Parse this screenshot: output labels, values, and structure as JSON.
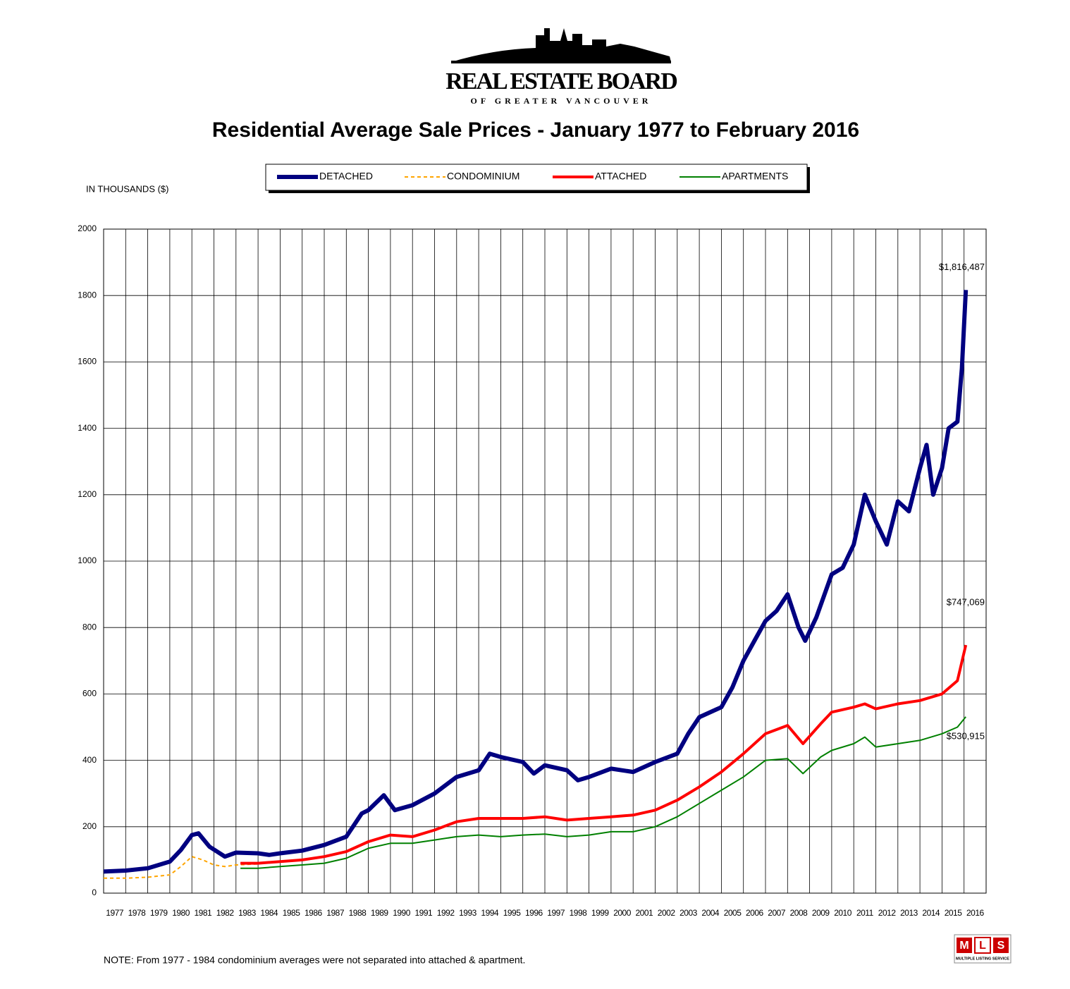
{
  "logo": {
    "name": "REAL ESTATE BOARD",
    "sub": "OF GREATER VANCOUVER",
    "mls": [
      "M",
      "L",
      "S"
    ],
    "mls_sub": "MULTIPLE LISTING SERVICE"
  },
  "chart_data": {
    "type": "line",
    "title": "Residential Average Sale Prices  -  January 1977 to February 2016",
    "y_label": "IN THOUSANDS ($)",
    "xlim": [
      1977,
      2017
    ],
    "xticks": [
      1977,
      1978,
      1979,
      1980,
      1981,
      1982,
      1983,
      1984,
      1985,
      1986,
      1987,
      1988,
      1989,
      1990,
      1991,
      1992,
      1993,
      1994,
      1995,
      1996,
      1997,
      1998,
      1999,
      2000,
      2001,
      2002,
      2003,
      2004,
      2005,
      2006,
      2007,
      2008,
      2009,
      2010,
      2011,
      2012,
      2013,
      2014,
      2015,
      2016
    ],
    "ylim": [
      0,
      2000
    ],
    "yticks": [
      0,
      200,
      400,
      600,
      800,
      1000,
      1200,
      1400,
      1600,
      1800,
      2000
    ],
    "grid": true,
    "series": [
      {
        "name": "DETACHED",
        "color": "#000080",
        "x": [
          1977,
          1978,
          1979,
          1980,
          1980.5,
          1981,
          1981.3,
          1981.8,
          1982.5,
          1983,
          1984,
          1984.5,
          1985,
          1986,
          1987,
          1988,
          1988.7,
          1989,
          1989.7,
          1990.2,
          1991,
          1992,
          1993,
          1994,
          1994.5,
          1995,
          1996,
          1996.5,
          1997,
          1998,
          1998.5,
          1999,
          2000,
          2001,
          2002,
          2003,
          2003.5,
          2004,
          2005,
          2005.5,
          2006,
          2006.5,
          2007,
          2007.5,
          2008,
          2008.5,
          2008.8,
          2009.3,
          2010,
          2010.5,
          2011,
          2011.5,
          2012,
          2012.5,
          2013,
          2013.5,
          2014,
          2014.3,
          2014.6,
          2015,
          2015.3,
          2015.7,
          2015.9,
          2016.08
        ],
        "values": [
          65,
          68,
          75,
          95,
          130,
          175,
          180,
          140,
          110,
          122,
          120,
          115,
          120,
          128,
          145,
          170,
          240,
          250,
          295,
          250,
          265,
          300,
          350,
          370,
          420,
          410,
          395,
          360,
          385,
          370,
          340,
          350,
          375,
          365,
          395,
          420,
          480,
          530,
          560,
          620,
          700,
          760,
          820,
          850,
          900,
          800,
          760,
          830,
          960,
          980,
          1050,
          1200,
          1120,
          1050,
          1180,
          1150,
          1280,
          1350,
          1200,
          1280,
          1400,
          1420,
          1580,
          1816.487
        ]
      },
      {
        "name": "CONDOMINIUM",
        "color": "#ffa500",
        "x": [
          1977,
          1978,
          1979,
          1980,
          1980.5,
          1981,
          1981.5,
          1982,
          1982.5,
          1983,
          1984
        ],
        "values": [
          45,
          45,
          48,
          55,
          80,
          110,
          100,
          85,
          80,
          85,
          88
        ]
      },
      {
        "name": "ATTACHED",
        "color": "#ff0000",
        "x": [
          1983.2,
          1984,
          1985,
          1986,
          1987,
          1988,
          1989,
          1990,
          1991,
          1992,
          1993,
          1994,
          1995,
          1996,
          1997,
          1998,
          1999,
          2000,
          2001,
          2002,
          2003,
          2004,
          2005,
          2006,
          2007,
          2008,
          2008.7,
          2009.5,
          2010,
          2011,
          2011.5,
          2012,
          2013,
          2014,
          2015,
          2015.7,
          2016.08
        ],
        "values": [
          90,
          90,
          95,
          100,
          110,
          125,
          155,
          175,
          170,
          190,
          215,
          225,
          225,
          225,
          230,
          220,
          225,
          230,
          235,
          250,
          280,
          320,
          365,
          420,
          480,
          505,
          450,
          510,
          545,
          560,
          570,
          555,
          570,
          580,
          600,
          640,
          747.069
        ]
      },
      {
        "name": "APARTMENTS",
        "color": "#008000",
        "x": [
          1983.2,
          1984,
          1985,
          1986,
          1987,
          1988,
          1989,
          1990,
          1991,
          1992,
          1993,
          1994,
          1995,
          1996,
          1997,
          1998,
          1999,
          2000,
          2001,
          2002,
          2003,
          2004,
          2005,
          2006,
          2007,
          2008,
          2008.7,
          2009.5,
          2010,
          2011,
          2011.5,
          2012,
          2013,
          2014,
          2015,
          2015.7,
          2016.08
        ],
        "values": [
          75,
          75,
          80,
          85,
          90,
          105,
          135,
          150,
          150,
          160,
          170,
          175,
          170,
          175,
          178,
          170,
          175,
          185,
          185,
          200,
          230,
          270,
          310,
          350,
          400,
          405,
          360,
          410,
          430,
          450,
          470,
          440,
          450,
          460,
          480,
          500,
          530.915
        ]
      }
    ],
    "annotations": [
      "$1,816,487",
      "$747,069",
      "$530,915"
    ],
    "note": "NOTE:  From 1977 - 1984 condominium averages were not separated into attached & apartment."
  }
}
